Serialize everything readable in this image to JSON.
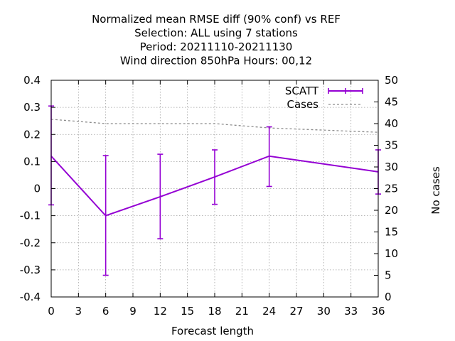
{
  "chart_data": {
    "type": "line",
    "title_lines": [
      "Normalized mean RMSE diff (90% conf) vs REF",
      "Selection: ALL using     7 stations",
      "Period: 20211110-20211130",
      "Wind direction 850hPa   Hours:  00,12"
    ],
    "xlabel": "Forecast length",
    "ylabel": "",
    "y2label": "No cases",
    "xlim": [
      0,
      36
    ],
    "ylim": [
      -0.4,
      0.4
    ],
    "y2lim": [
      0,
      50
    ],
    "xticks": [
      "0",
      "3",
      "6",
      "9",
      "12",
      "15",
      "18",
      "21",
      "24",
      "27",
      "30",
      "33",
      "36"
    ],
    "yticks": [
      "-0.4",
      "-0.3",
      "-0.2",
      "-0.1",
      "0",
      "0.1",
      "0.2",
      "0.3",
      "0.4"
    ],
    "y2ticks": [
      "0",
      "5",
      "10",
      "15",
      "20",
      "25",
      "30",
      "35",
      "40",
      "45",
      "50"
    ],
    "grid": true,
    "legend_position": "top-right",
    "series": [
      {
        "name": "SCATT",
        "color": "#9400d3",
        "x": [
          0,
          6,
          12,
          18,
          24,
          36
        ],
        "y": [
          0.12,
          -0.1,
          -0.03,
          0.043,
          0.12,
          0.062
        ],
        "err_low": [
          -0.06,
          -0.32,
          -0.185,
          -0.058,
          0.008,
          -0.02
        ],
        "err_high": [
          0.305,
          0.122,
          0.127,
          0.143,
          0.228,
          0.143
        ]
      },
      {
        "name": "Cases",
        "color": "#8c8c8c",
        "axis": "y2",
        "x": [
          0,
          6,
          12,
          18,
          24,
          30,
          36
        ],
        "y": [
          41,
          40,
          40,
          40,
          39,
          38.5,
          38
        ]
      }
    ]
  }
}
